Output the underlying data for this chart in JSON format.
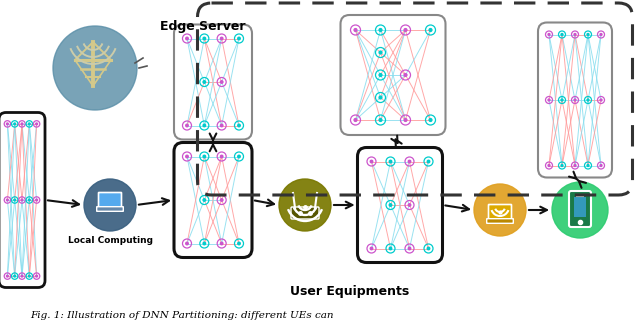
{
  "caption": "Fig. 1: Illustration of DNN Partitioning: different UEs can",
  "user_equipments_label": "User Equipments",
  "edge_server_label": "Edge Server",
  "local_computing_label": "Local Computing",
  "bg_color": "#ffffff",
  "dnn_node_color_pink": "#cc55cc",
  "dnn_node_color_cyan": "#00cccc",
  "dnn_edge_color_pink": "#ff9999",
  "dnn_edge_color_cyan": "#88ddee",
  "edge_server_circle_color": "#5b8fa8",
  "laptop_circle_color": "#3a6080",
  "router_circle_color": "#7a7800",
  "laptop2_circle_color": "#e0a020",
  "phone_circle_color": "#2ecc71",
  "box_border_dark": "#111111",
  "box_border_gray": "#888888",
  "dashed_border_color": "#333333",
  "arrow_color": "#111111"
}
